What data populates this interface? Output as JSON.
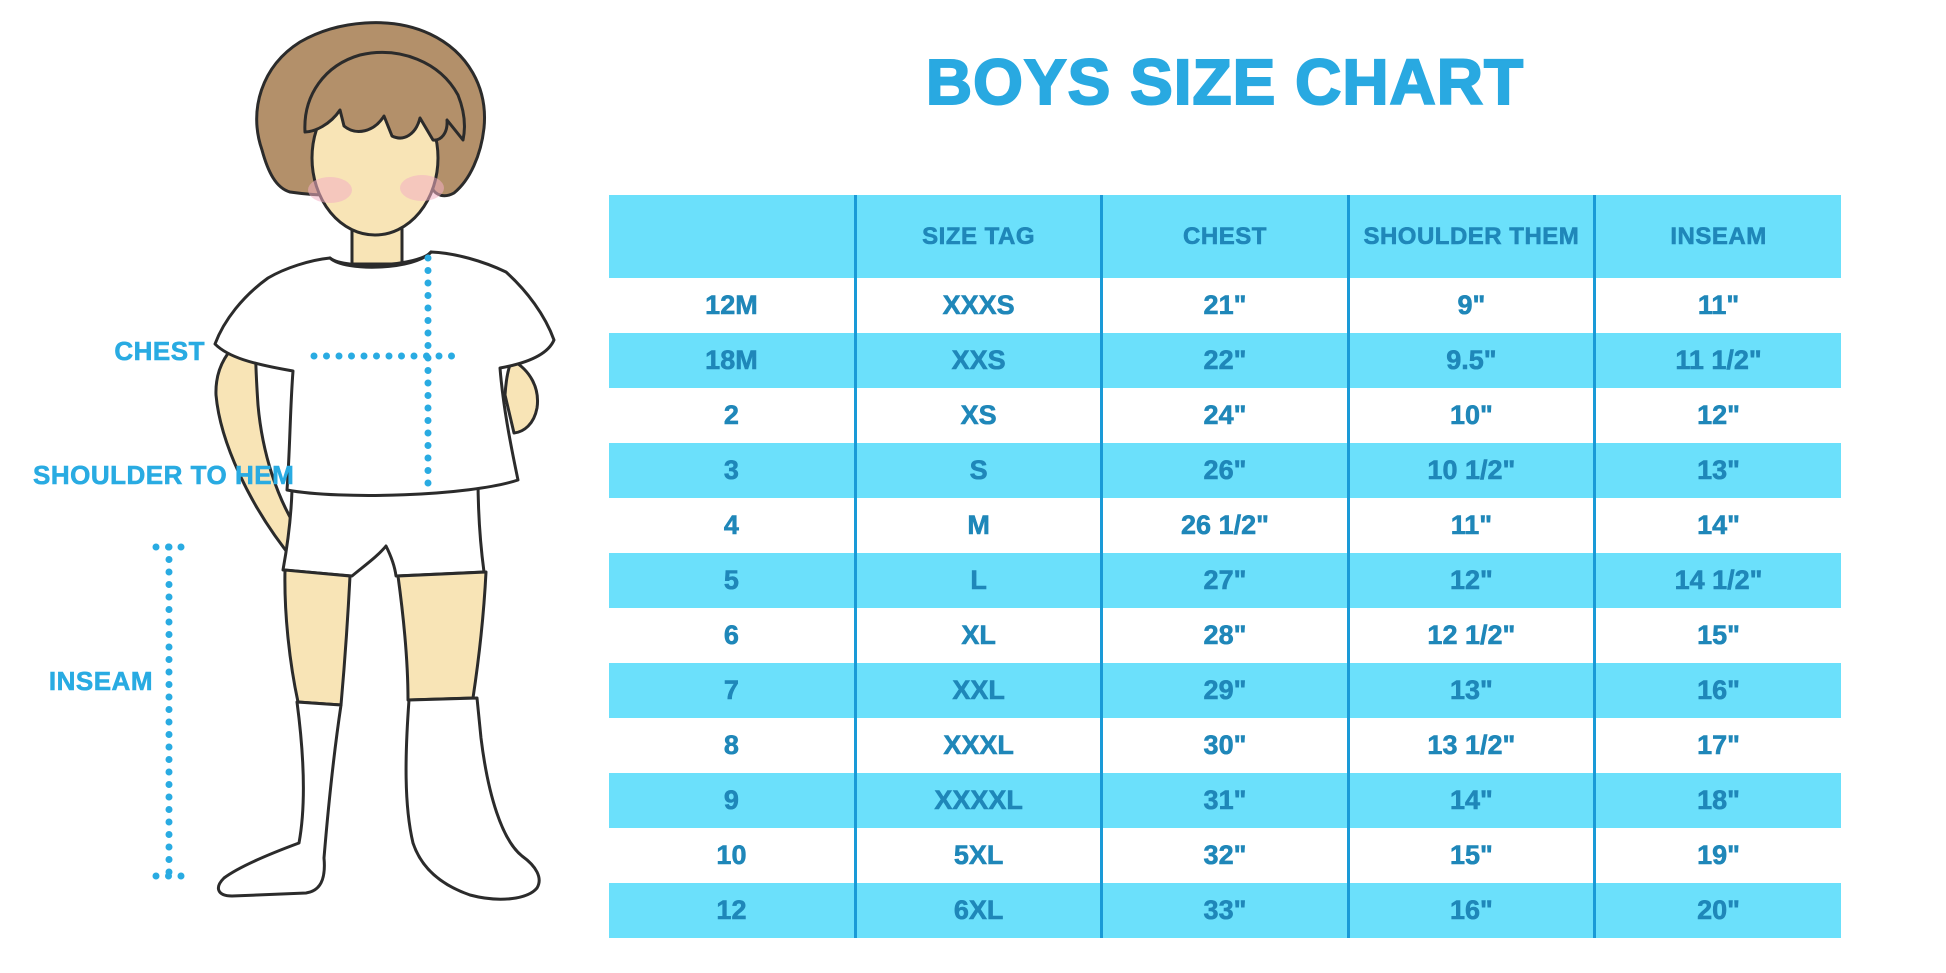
{
  "title": {
    "text": "BOYS SIZE CHART"
  },
  "diagram": {
    "chest_label": "CHEST",
    "shoulder_to_hem_label": "SHOULDER TO HEM",
    "inseam_label": "INSEAM"
  },
  "colors": {
    "title_blue": "#29A9E1",
    "label_blue": "#29ABE2",
    "band_cyan": "#6BE0FB",
    "grid_line_blue": "#1A9AD7",
    "cell_text_teal": "#1F87B9",
    "skin": "#F8E4B6",
    "hair_brown": "#B3906A",
    "cheek_pink": "#F2AEC3"
  },
  "chart_data": {
    "type": "table",
    "title": "BOYS SIZE CHART",
    "columns": [
      "",
      "SIZE TAG",
      "CHEST",
      "SHOULDER THEM",
      "INSEAM"
    ],
    "rows": [
      [
        "12M",
        "XXXS",
        "21\"",
        "9\"",
        "11\""
      ],
      [
        "18M",
        "XXS",
        "22\"",
        "9.5\"",
        "11 1/2\""
      ],
      [
        "2",
        "XS",
        "24\"",
        "10\"",
        "12\""
      ],
      [
        "3",
        "S",
        "26\"",
        "10 1/2\"",
        "13\""
      ],
      [
        "4",
        "M",
        "26 1/2\"",
        "11\"",
        "14\""
      ],
      [
        "5",
        "L",
        "27\"",
        "12\"",
        "14 1/2\""
      ],
      [
        "6",
        "XL",
        "28\"",
        "12 1/2\"",
        "15\""
      ],
      [
        "7",
        "XXL",
        "29\"",
        "13\"",
        "16\""
      ],
      [
        "8",
        "XXXL",
        "30\"",
        "13 1/2\"",
        "17\""
      ],
      [
        "9",
        "XXXXL",
        "31\"",
        "14\"",
        "18\""
      ],
      [
        "10",
        "5XL",
        "32\"",
        "15\"",
        "19\""
      ],
      [
        "12",
        "6XL",
        "33\"",
        "16\"",
        "20\""
      ]
    ]
  }
}
